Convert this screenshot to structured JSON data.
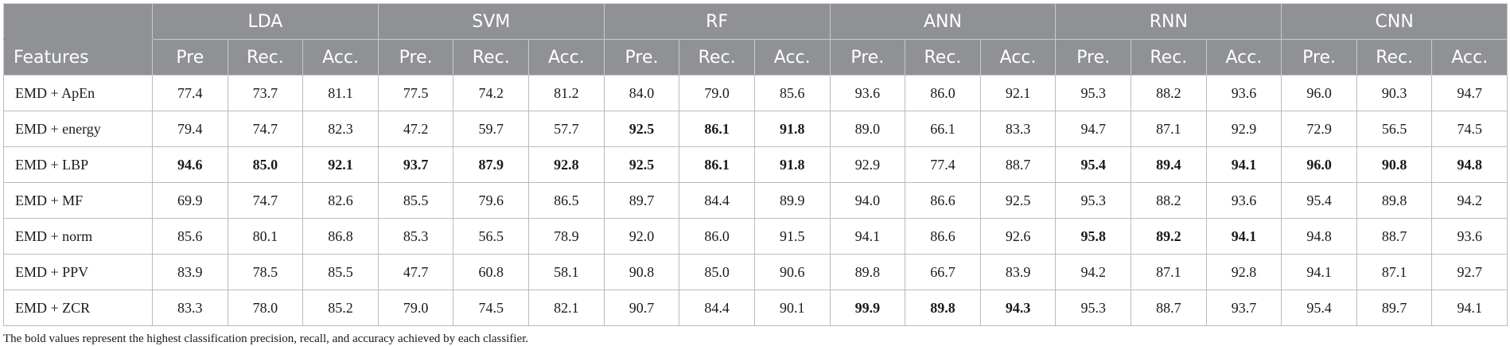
{
  "table": {
    "feature_header": "Features",
    "classifiers": [
      "LDA",
      "SVM",
      "RF",
      "ANN",
      "RNN",
      "CNN"
    ],
    "metric_headers": [
      [
        "Pre",
        "Rec.",
        "Acc."
      ],
      [
        "Pre.",
        "Rec.",
        "Acc."
      ],
      [
        "Pre.",
        "Rec.",
        "Acc."
      ],
      [
        "Pre.",
        "Rec.",
        "Acc."
      ],
      [
        "Pre.",
        "Rec.",
        "Acc."
      ],
      [
        "Pre.",
        "Rec.",
        "Acc."
      ]
    ],
    "rows": [
      {
        "feature": "EMD + ApEn",
        "values": [
          "77.4",
          "73.7",
          "81.1",
          "77.5",
          "74.2",
          "81.2",
          "84.0",
          "79.0",
          "85.6",
          "93.6",
          "86.0",
          "92.1",
          "95.3",
          "88.2",
          "93.6",
          "96.0",
          "90.3",
          "94.7"
        ],
        "bold": []
      },
      {
        "feature": "EMD + energy",
        "values": [
          "79.4",
          "74.7",
          "82.3",
          "47.2",
          "59.7",
          "57.7",
          "92.5",
          "86.1",
          "91.8",
          "89.0",
          "66.1",
          "83.3",
          "94.7",
          "87.1",
          "92.9",
          "72.9",
          "56.5",
          "74.5"
        ],
        "bold": [
          6,
          7,
          8
        ]
      },
      {
        "feature": "EMD + LBP",
        "values": [
          "94.6",
          "85.0",
          "92.1",
          "93.7",
          "87.9",
          "92.8",
          "92.5",
          "86.1",
          "91.8",
          "92.9",
          "77.4",
          "88.7",
          "95.4",
          "89.4",
          "94.1",
          "96.0",
          "90.8",
          "94.8"
        ],
        "bold": [
          0,
          1,
          2,
          3,
          4,
          5,
          6,
          7,
          8,
          12,
          13,
          14,
          15,
          16,
          17
        ]
      },
      {
        "feature": "EMD + MF",
        "values": [
          "69.9",
          "74.7",
          "82.6",
          "85.5",
          "79.6",
          "86.5",
          "89.7",
          "84.4",
          "89.9",
          "94.0",
          "86.6",
          "92.5",
          "95.3",
          "88.2",
          "93.6",
          "95.4",
          "89.8",
          "94.2"
        ],
        "bold": []
      },
      {
        "feature": "EMD + norm",
        "values": [
          "85.6",
          "80.1",
          "86.8",
          "85.3",
          "56.5",
          "78.9",
          "92.0",
          "86.0",
          "91.5",
          "94.1",
          "86.6",
          "92.6",
          "95.8",
          "89.2",
          "94.1",
          "94.8",
          "88.7",
          "93.6"
        ],
        "bold": [
          12,
          13,
          14
        ]
      },
      {
        "feature": "EMD + PPV",
        "values": [
          "83.9",
          "78.5",
          "85.5",
          "47.7",
          "60.8",
          "58.1",
          "90.8",
          "85.0",
          "90.6",
          "89.8",
          "66.7",
          "83.9",
          "94.2",
          "87.1",
          "92.8",
          "94.1",
          "87.1",
          "92.7"
        ],
        "bold": []
      },
      {
        "feature": "EMD + ZCR",
        "values": [
          "83.3",
          "78.0",
          "85.2",
          "79.0",
          "74.5",
          "82.1",
          "90.7",
          "84.4",
          "90.1",
          "99.9",
          "89.8",
          "94.3",
          "95.3",
          "88.7",
          "93.7",
          "95.4",
          "89.7",
          "94.1"
        ],
        "bold": [
          9,
          10,
          11
        ]
      }
    ],
    "footnote": "The bold values represent the highest classification precision, recall, and accuracy achieved by each classifier."
  },
  "colors": {
    "header_bg": "#8f9194",
    "header_text": "#ffffff",
    "cell_border": "#b9bbbd"
  }
}
